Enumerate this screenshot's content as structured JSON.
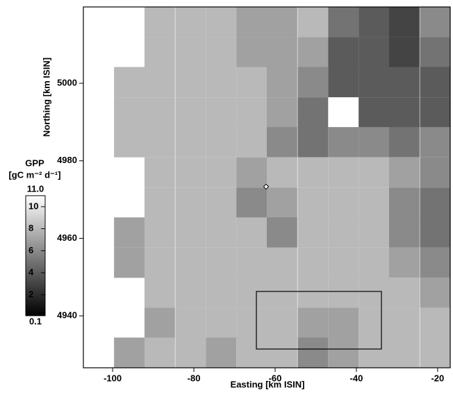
{
  "chart_data": {
    "type": "raster",
    "xlabel": "Easting [km ISIN]",
    "ylabel": "Northing [km ISIN]",
    "xlim": [
      -107.2,
      -16.9
    ],
    "ylim": [
      4926.6,
      5019.7
    ],
    "xticks": [
      -100,
      -80,
      -60,
      -40,
      -20
    ],
    "yticks": [
      4940,
      4960,
      4980,
      5000
    ],
    "x": [
      -103.4,
      -95.9,
      -88.4,
      -80.8,
      -73.3,
      -65.8,
      -58.3,
      -50.7,
      -43.2,
      -35.7,
      -28.2,
      -20.6
    ],
    "y": [
      5015.8,
      5008.0,
      5000.3,
      4992.5,
      4984.8,
      4977.0,
      4969.2,
      4961.5,
      4953.7,
      4946.0,
      4938.2,
      4930.5
    ],
    "z": [
      [
        null,
        null,
        8,
        8,
        8,
        7,
        7,
        8,
        5,
        4,
        3,
        6
      ],
      [
        null,
        null,
        8,
        8,
        8,
        7,
        7,
        7,
        4,
        4,
        3,
        5
      ],
      [
        null,
        8,
        8,
        8,
        8,
        8,
        7,
        6,
        4,
        4,
        4,
        4
      ],
      [
        null,
        8,
        8,
        8,
        8,
        8,
        7,
        5,
        null,
        4,
        4,
        4
      ],
      [
        null,
        8,
        8,
        8,
        8,
        8,
        6,
        5,
        6,
        6,
        5,
        6
      ],
      [
        null,
        null,
        8,
        8,
        8,
        7,
        8,
        8,
        8,
        8,
        7,
        6
      ],
      [
        null,
        null,
        8,
        8,
        8,
        6,
        7,
        8,
        8,
        8,
        6,
        5
      ],
      [
        null,
        7,
        8,
        8,
        8,
        8,
        6,
        8,
        8,
        8,
        6,
        5
      ],
      [
        null,
        7,
        8,
        8,
        8,
        8,
        8,
        8,
        8,
        8,
        7,
        6
      ],
      [
        null,
        null,
        8,
        8,
        8,
        8,
        8,
        8,
        8,
        8,
        8,
        7
      ],
      [
        null,
        null,
        7,
        8,
        8,
        8,
        8,
        7,
        7,
        8,
        8,
        8
      ],
      [
        null,
        7,
        8,
        8,
        7,
        8,
        8,
        6,
        7,
        8,
        8,
        8
      ]
    ],
    "colormap": [
      "#000000",
      "#ffffff"
    ],
    "colorbar": {
      "title": "GPP",
      "unit": "[gC m⁻² d⁻¹]",
      "lim": [
        0.1,
        11.0
      ],
      "ticks": [
        {
          "value": 0.1,
          "label": "0.1"
        },
        2,
        4,
        6,
        8,
        10,
        {
          "value": 11.0,
          "label": "11.0"
        }
      ]
    }
  }
}
